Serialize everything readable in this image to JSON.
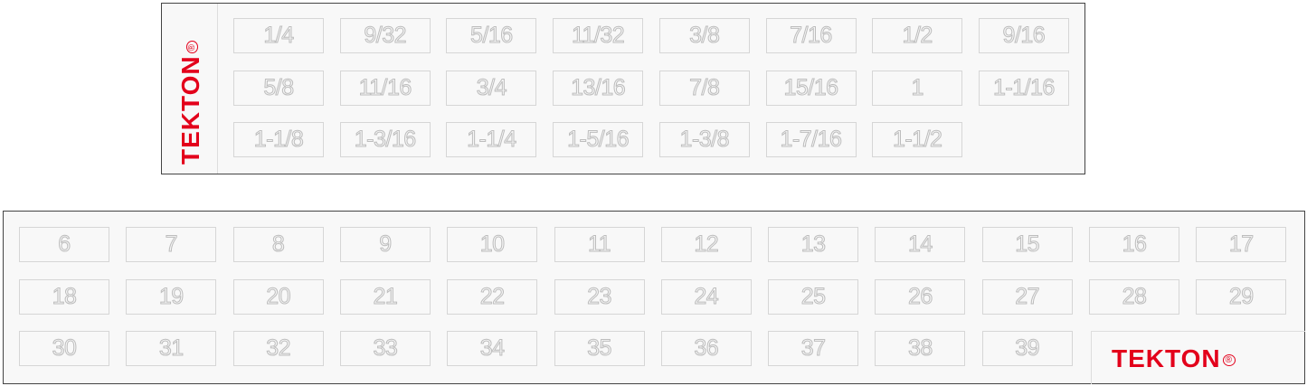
{
  "brand": {
    "name": "TEKTON",
    "registered": "®",
    "color": "#e3001b"
  },
  "sae_tray": {
    "rows": [
      [
        "1/4",
        "9/32",
        "5/16",
        "11/32",
        "3/8",
        "7/16",
        "1/2",
        "9/16"
      ],
      [
        "5/8",
        "11/16",
        "3/4",
        "13/16",
        "7/8",
        "15/16",
        "1",
        "1-1/16"
      ],
      [
        "1-1/8",
        "1-3/16",
        "1-1/4",
        "1-5/16",
        "1-3/8",
        "1-7/16",
        "1-1/2"
      ]
    ]
  },
  "metric_tray": {
    "rows": [
      [
        "6",
        "7",
        "8",
        "9",
        "10",
        "11",
        "12",
        "13",
        "14",
        "15",
        "16",
        "17"
      ],
      [
        "18",
        "19",
        "20",
        "21",
        "22",
        "23",
        "24",
        "25",
        "26",
        "27",
        "28",
        "29"
      ],
      [
        "30",
        "31",
        "32",
        "33",
        "34",
        "35",
        "36",
        "37",
        "38",
        "39"
      ]
    ]
  }
}
